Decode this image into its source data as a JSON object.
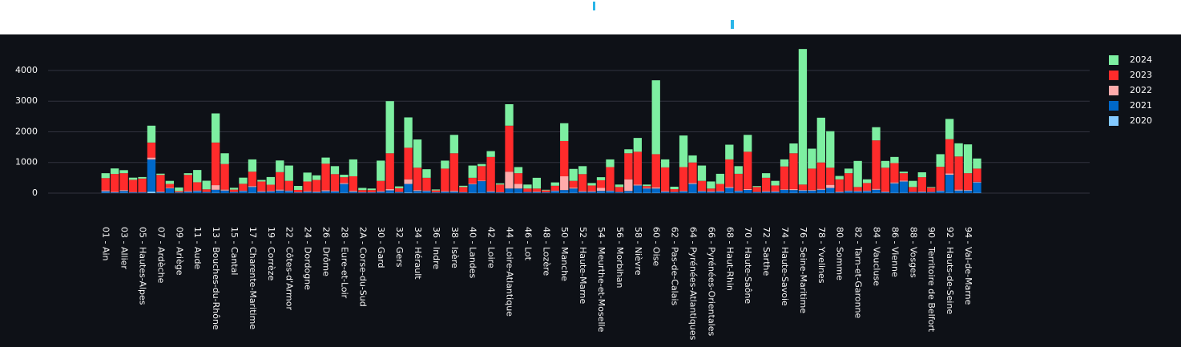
{
  "chart_data": {
    "type": "stacked_bar",
    "categories": [
      "01 - Ain",
      null,
      "03 - Allier",
      null,
      "05 - Hautes-Alpes",
      null,
      "07 - Ardèche",
      null,
      "09 - Ariège",
      null,
      "11 - Aude",
      null,
      "13 - Bouches-du-Rhône",
      null,
      "15 - Cantal",
      null,
      "17 - Charente-Maritime",
      null,
      "19 - Corrèze",
      null,
      "22 - Côtes-d'Armor",
      null,
      "24 - Dordogne",
      null,
      "26 - Drôme",
      null,
      "28 - Eure-et-Loir",
      null,
      "2A - Corse-du-Sud",
      null,
      "30 - Gard",
      null,
      "32 - Gers",
      null,
      "34 - Hérault",
      null,
      "36 - Indre",
      null,
      "38 - Isère",
      null,
      "40 - Landes",
      null,
      "42 - Loire",
      null,
      "44 - Loire-Atlantique",
      null,
      "46 - Lot",
      null,
      "48 - Lozère",
      null,
      "50 - Manche",
      null,
      "52 - Haute-Marne",
      null,
      "54 - Meurthe-et-Moselle",
      null,
      "56 - Morbihan",
      null,
      "58 - Nièvre",
      null,
      "60 - Oise",
      null,
      "62 - Pas-de-Calais",
      null,
      "64 - Pyrénées-Atlantiques",
      null,
      "66 - Pyrénées-Orientales",
      null,
      "68 - Haut-Rhin",
      null,
      "70 - Haute-Saône",
      null,
      "72 - Sarthe",
      null,
      "74 - Haute-Savoie",
      null,
      "76 - Seine-Maritime",
      null,
      "78 - Yvelines",
      null,
      "80 - Somme",
      null,
      "82 - Tarn-et-Garonne",
      null,
      "84 - Vaucluse",
      null,
      "86 - Vienne",
      null,
      "88 - Vosges",
      null,
      "90 - Territoire de Belfort",
      null,
      "92 - Hauts-de-Seine",
      null,
      "94 - Val-de-Marne",
      null
    ],
    "series": [
      {
        "name": "2020",
        "color": "#83c9ff",
        "values": [
          10,
          5,
          10,
          5,
          5,
          50,
          5,
          5,
          5,
          5,
          5,
          5,
          10,
          5,
          5,
          5,
          10,
          5,
          5,
          5,
          5,
          5,
          5,
          5,
          5,
          5,
          10,
          5,
          5,
          5,
          5,
          10,
          5,
          20,
          10,
          5,
          5,
          5,
          5,
          5,
          10,
          10,
          5,
          5,
          10,
          10,
          5,
          5,
          5,
          5,
          10,
          10,
          5,
          5,
          10,
          5,
          5,
          10,
          10,
          10,
          10,
          5,
          5,
          5,
          10,
          5,
          5,
          5,
          10,
          5,
          5,
          5,
          5,
          5,
          5,
          10,
          5,
          5,
          10,
          10,
          5,
          5,
          5,
          5,
          10,
          5,
          10,
          10,
          5,
          5,
          5,
          5,
          10,
          5,
          5,
          10
        ]
      },
      {
        "name": "2021",
        "color": "#0068c9",
        "values": [
          50,
          20,
          60,
          20,
          20,
          1050,
          30,
          150,
          20,
          40,
          60,
          30,
          100,
          80,
          30,
          60,
          190,
          40,
          50,
          80,
          60,
          20,
          40,
          30,
          60,
          50,
          290,
          40,
          20,
          20,
          40,
          80,
          30,
          280,
          60,
          60,
          20,
          40,
          40,
          20,
          280,
          380,
          40,
          20,
          140,
          140,
          30,
          30,
          20,
          60,
          90,
          140,
          40,
          40,
          60,
          60,
          30,
          60,
          240,
          140,
          140,
          40,
          30,
          50,
          290,
          50,
          40,
          50,
          160,
          60,
          100,
          30,
          40,
          40,
          100,
          90,
          80,
          80,
          100,
          160,
          30,
          60,
          50,
          60,
          100,
          30,
          310,
          370,
          30,
          30,
          30,
          60,
          590,
          80,
          80,
          340
        ]
      },
      {
        "name": "2022",
        "color": "#ffabab",
        "values": [
          30,
          20,
          30,
          10,
          10,
          60,
          20,
          20,
          10,
          20,
          20,
          10,
          150,
          30,
          10,
          20,
          30,
          20,
          20,
          30,
          20,
          10,
          20,
          20,
          30,
          20,
          30,
          30,
          10,
          10,
          20,
          40,
          10,
          150,
          30,
          20,
          10,
          20,
          30,
          10,
          20,
          20,
          20,
          10,
          550,
          150,
          10,
          20,
          10,
          20,
          450,
          30,
          20,
          20,
          100,
          20,
          10,
          380,
          30,
          20,
          40,
          20,
          10,
          20,
          30,
          20,
          20,
          20,
          30,
          20,
          30,
          10,
          20,
          20,
          20,
          30,
          20,
          20,
          30,
          100,
          20,
          20,
          20,
          20,
          30,
          20,
          30,
          30,
          10,
          20,
          10,
          20,
          40,
          30,
          20,
          20
        ]
      },
      {
        "name": "2023",
        "color": "#ff2b2b",
        "values": [
          400,
          580,
          550,
          400,
          440,
          490,
          540,
          125,
          30,
          530,
          270,
          80,
          1390,
          835,
          70,
          220,
          470,
          315,
          200,
          570,
          315,
          70,
          315,
          375,
          865,
          545,
          190,
          475,
          65,
          65,
          335,
          1170,
          115,
          1030,
          730,
          415,
          55,
          735,
          1225,
          165,
          190,
          470,
          1115,
          245,
          1500,
          350,
          105,
          95,
          55,
          155,
          1150,
          220,
          555,
          185,
          250,
          765,
          155,
          850,
          1070,
          60,
          1080,
          775,
          85,
          775,
          670,
          325,
          85,
          225,
          900,
          545,
          1215,
          155,
          435,
          185,
          745,
          1170,
          175,
          695,
          860,
          560,
          395,
          565,
          125,
          245,
          1580,
          775,
          630,
          240,
          155,
          465,
          135,
          775,
          1120,
          1080,
          545,
          430
        ]
      },
      {
        "name": "2024",
        "color": "#7defa1",
        "values": [
          160,
          180,
          100,
          70,
          50,
          550,
          40,
          100,
          120,
          55,
          400,
          280,
          950,
          350,
          60,
          200,
          400,
          50,
          250,
          380,
          500,
          130,
          290,
          150,
          200,
          260,
          80,
          550,
          70,
          50,
          660,
          1700,
          60,
          990,
          920,
          280,
          30,
          260,
          600,
          40,
          400,
          70,
          190,
          40,
          700,
          200,
          130,
          350,
          20,
          110,
          580,
          390,
          260,
          80,
          100,
          250,
          80,
          130,
          450,
          50,
          2410,
          260,
          80,
          1030,
          230,
          500,
          230,
          330,
          480,
          250,
          550,
          30,
          150,
          150,
          230,
          320,
          4420,
          650,
          1460,
          1190,
          110,
          150,
          850,
          120,
          430,
          220,
          200,
          50,
          200,
          160,
          20,
          410,
          660,
          430,
          940,
          330
        ]
      }
    ],
    "ylim": [
      -235,
      4730
    ],
    "yticks": [
      0,
      1000,
      2000,
      3000,
      4000
    ],
    "grid": true
  }
}
